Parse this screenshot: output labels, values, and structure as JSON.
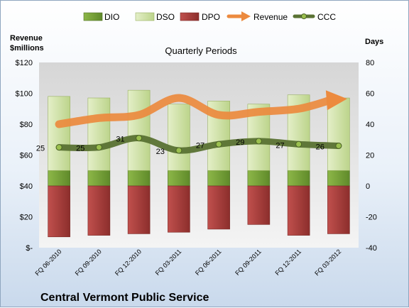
{
  "chart_data": {
    "type": "bar",
    "title": "Quarterly Periods",
    "company": "Central Vermont Public Service",
    "left_axis_label": [
      "Revenue",
      "$millions"
    ],
    "right_axis_label": "Days",
    "categories": [
      "FQ 06-2010",
      "FQ 09-2010",
      "FQ 12-2010",
      "FQ 03-2011",
      "FQ 06-2011",
      "FQ 09-2011",
      "FQ 12-2011",
      "FQ 03-2012"
    ],
    "left_ticks": [
      "$120",
      "$100",
      "$80",
      "$60",
      "$40",
      "$20",
      "$-"
    ],
    "right_ticks": [
      "80",
      "60",
      "40",
      "20",
      "0",
      "-20",
      "-40"
    ],
    "ylim_left": [
      0,
      120
    ],
    "ylim_right": [
      -40,
      80
    ],
    "grid": false,
    "legend_position": "top",
    "series": [
      {
        "name": "DIO",
        "axis": "right",
        "kind": "stacked-bar",
        "color": "#7aa63a",
        "values": [
          10,
          10,
          10,
          10,
          10,
          10,
          10,
          10
        ]
      },
      {
        "name": "DSO",
        "axis": "right",
        "kind": "stacked-bar",
        "color": "#d7e7b0",
        "values": [
          48,
          47,
          52,
          43,
          45,
          43,
          49,
          47
        ]
      },
      {
        "name": "DPO",
        "axis": "right",
        "kind": "negative-bar",
        "color": "#b8474a",
        "values": [
          -33,
          -32,
          -31,
          -30,
          -28,
          -25,
          -32,
          -31
        ]
      },
      {
        "name": "Revenue",
        "axis": "left",
        "kind": "line",
        "color": "#ec8a3e",
        "values": [
          80,
          84,
          86,
          97,
          86,
          88,
          90,
          96
        ]
      },
      {
        "name": "CCC",
        "axis": "right",
        "kind": "line",
        "color": "#5a7233",
        "values": [
          25,
          25,
          31,
          23,
          27,
          29,
          27,
          26
        ],
        "labels": [
          "25",
          "25",
          "31",
          "23",
          "27",
          "29",
          "27",
          "26"
        ]
      }
    ]
  }
}
